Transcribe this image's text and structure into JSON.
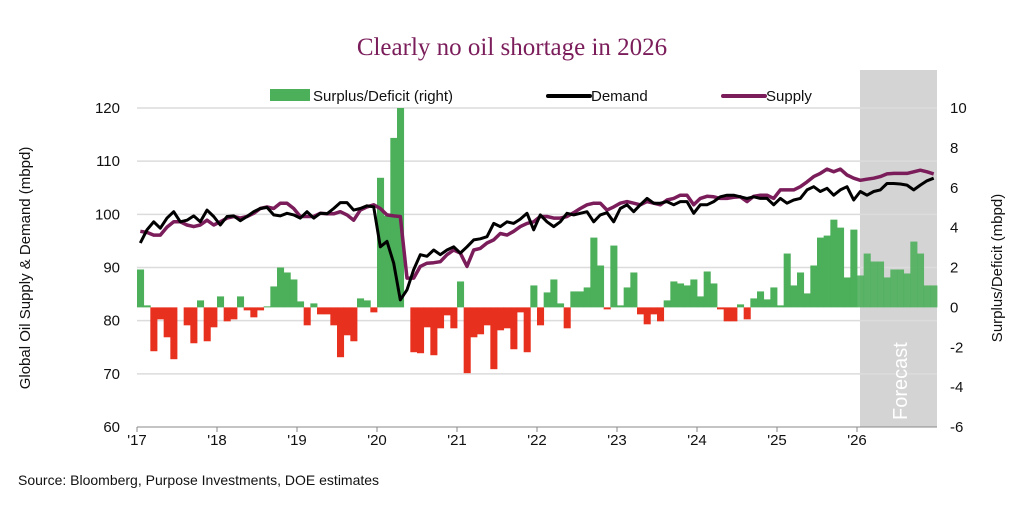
{
  "chart_data": {
    "type": "bar+line",
    "title": "Clearly no oil shortage in 2026",
    "frequency": "monthly",
    "period": [
      "2017-01",
      "2026-12"
    ],
    "x_tick_labels": [
      "'17",
      "'18",
      "'19",
      "'20",
      "'21",
      "'22",
      "'23",
      "'24",
      "'25",
      "'26"
    ],
    "ylabel_left": "Global Oil Supply & Demand (mbpd)",
    "ylabel_right": "Surplus/Deficit (mbpd)",
    "ylim_left": [
      60,
      120
    ],
    "ylim_right": [
      -6,
      10
    ],
    "y_ticks_left": [
      "120",
      "110",
      "100",
      "90",
      "80",
      "70",
      "60"
    ],
    "y_ticks_right": [
      "10",
      "8",
      "6",
      "4",
      "2",
      "0",
      "-2",
      "-4",
      "-6"
    ],
    "grid": true,
    "legend_position": "top",
    "forecast_label": "Forecast",
    "forecast_start": "2026-01",
    "colors": {
      "surplus": "#4caf5a",
      "deficit": "#e8301f",
      "demand": "#000000",
      "supply": "#7b1d5a",
      "forecast_shade": "#d4d4d4",
      "title": "#7b1d5a"
    },
    "series": [
      {
        "name": "Surplus/Deficit (right)",
        "type": "bar",
        "axis": "right",
        "values": [
          1.9,
          0.1,
          -2.2,
          -0.6,
          -1.5,
          -2.6,
          0,
          -0.9,
          -1.8,
          0.35,
          -1.7,
          -1.0,
          0.55,
          -0.7,
          -0.6,
          0.55,
          -0.15,
          -0.5,
          -0.15,
          0.05,
          1.05,
          2.0,
          1.75,
          1.4,
          0.3,
          -0.9,
          0.2,
          -0.35,
          -0.35,
          -0.9,
          -2.5,
          -1.4,
          -1.7,
          0.45,
          0.35,
          -0.25,
          6.5,
          4.6,
          8.5,
          10.0,
          0,
          -2.25,
          -2.3,
          -1.0,
          -2.4,
          -1.05,
          -0.4,
          -1.05,
          1.3,
          -3.3,
          -1.5,
          -1.35,
          -0.9,
          -3.1,
          -1.15,
          -1.05,
          -2.1,
          -0.25,
          -2.25,
          1.1,
          -0.9,
          0.75,
          1.4,
          0.2,
          -1.05,
          0.8,
          0.8,
          1.0,
          3.5,
          2.1,
          -0.1,
          3.1,
          0.1,
          1.0,
          1.75,
          -0.35,
          -0.85,
          -0.35,
          -0.7,
          0.35,
          1.3,
          1.2,
          1.1,
          1.4,
          0.55,
          1.8,
          1.2,
          -0.1,
          -0.7,
          -0.7,
          0.15,
          -0.6,
          0.45,
          0.8,
          0.4,
          1.0,
          0.1,
          2.7,
          1.1,
          1.75,
          0.7,
          2.1,
          3.5,
          3.6,
          4.4,
          4.0,
          1.5,
          3.9,
          1.6,
          2.7,
          2.3,
          2.3,
          1.5,
          1.9,
          1.9,
          1.7,
          3.3,
          2.7,
          1.1,
          1.1
        ]
      },
      {
        "name": "Demand",
        "type": "line",
        "axis": "left",
        "values": [
          94.6,
          97.1,
          98.6,
          97.4,
          99.3,
          100.5,
          98.6,
          98.9,
          99.7,
          98.6,
          100.8,
          99.6,
          98.0,
          99.6,
          99.7,
          98.8,
          99.6,
          100.5,
          101.1,
          101.3,
          99.9,
          99.7,
          100.2,
          99.9,
          99.3,
          100.5,
          99.3,
          100.2,
          100.1,
          101.1,
          102.2,
          102.2,
          100.8,
          101.1,
          101.6,
          101.4,
          93.9,
          94.9,
          90.8,
          83.9,
          85.8,
          89.6,
          92.4,
          92.1,
          93.3,
          92.4,
          93.3,
          93.9,
          92.7,
          93.9,
          95.2,
          95.4,
          95.8,
          98.3,
          97.7,
          98.6,
          98.3,
          99.1,
          100.2,
          97.1,
          99.9,
          98.6,
          97.7,
          98.6,
          100.2,
          99.9,
          100.2,
          100.5,
          98.6,
          99.9,
          100.3,
          98.6,
          101.1,
          101.8,
          100.5,
          101.8,
          103.0,
          102.1,
          102.1,
          102.4,
          101.8,
          102.4,
          102.4,
          100.2,
          101.8,
          101.8,
          102.4,
          103.3,
          103.6,
          103.6,
          103.3,
          103.0,
          103.3,
          103.0,
          103.0,
          101.8,
          103.0,
          102.1,
          102.7,
          103.0,
          104.6,
          105.2,
          104.3,
          104.9,
          103.6,
          104.6,
          105.2,
          102.7,
          104.3,
          103.6,
          104.3,
          104.6,
          105.8,
          105.8,
          105.7,
          105.5,
          104.6,
          105.5,
          106.3,
          106.8
        ]
      },
      {
        "name": "Supply",
        "type": "line",
        "axis": "left",
        "values": [
          96.8,
          96.6,
          96.1,
          96.1,
          97.6,
          98.6,
          98.6,
          98.0,
          97.7,
          98.0,
          98.9,
          98.0,
          98.6,
          99.3,
          99.6,
          99.3,
          99.6,
          100.2,
          101.1,
          101.4,
          101.1,
          102.1,
          102.1,
          101.1,
          99.6,
          99.6,
          99.6,
          100.2,
          100.1,
          100.1,
          100.5,
          99.9,
          98.9,
          100.8,
          101.4,
          101.8,
          101.1,
          99.9,
          99.7,
          99.6,
          88.0,
          88.0,
          90.2,
          90.8,
          90.9,
          91.1,
          92.4,
          93.3,
          92.7,
          90.2,
          93.3,
          93.6,
          94.6,
          95.2,
          96.4,
          96.1,
          96.8,
          97.7,
          98.3,
          98.6,
          99.6,
          99.6,
          99.3,
          99.3,
          99.6,
          100.3,
          101.1,
          101.8,
          102.1,
          102.1,
          100.8,
          101.4,
          102.1,
          102.4,
          102.1,
          101.8,
          102.4,
          102.1,
          101.8,
          102.7,
          103.0,
          103.6,
          103.6,
          101.8,
          103.0,
          103.4,
          103.3,
          103.0,
          103.0,
          103.2,
          103.3,
          102.4,
          103.4,
          103.6,
          103.6,
          103.0,
          104.6,
          104.6,
          104.6,
          105.2,
          106.1,
          107.1,
          107.7,
          108.5,
          108.0,
          108.5,
          107.4,
          106.8,
          106.4,
          106.6,
          106.8,
          107.1,
          107.6,
          107.7,
          107.7,
          107.7,
          108.0,
          108.3,
          108.0,
          107.6
        ]
      }
    ]
  },
  "source": "Source: Bloomberg, Purpose Investments, DOE estimates"
}
